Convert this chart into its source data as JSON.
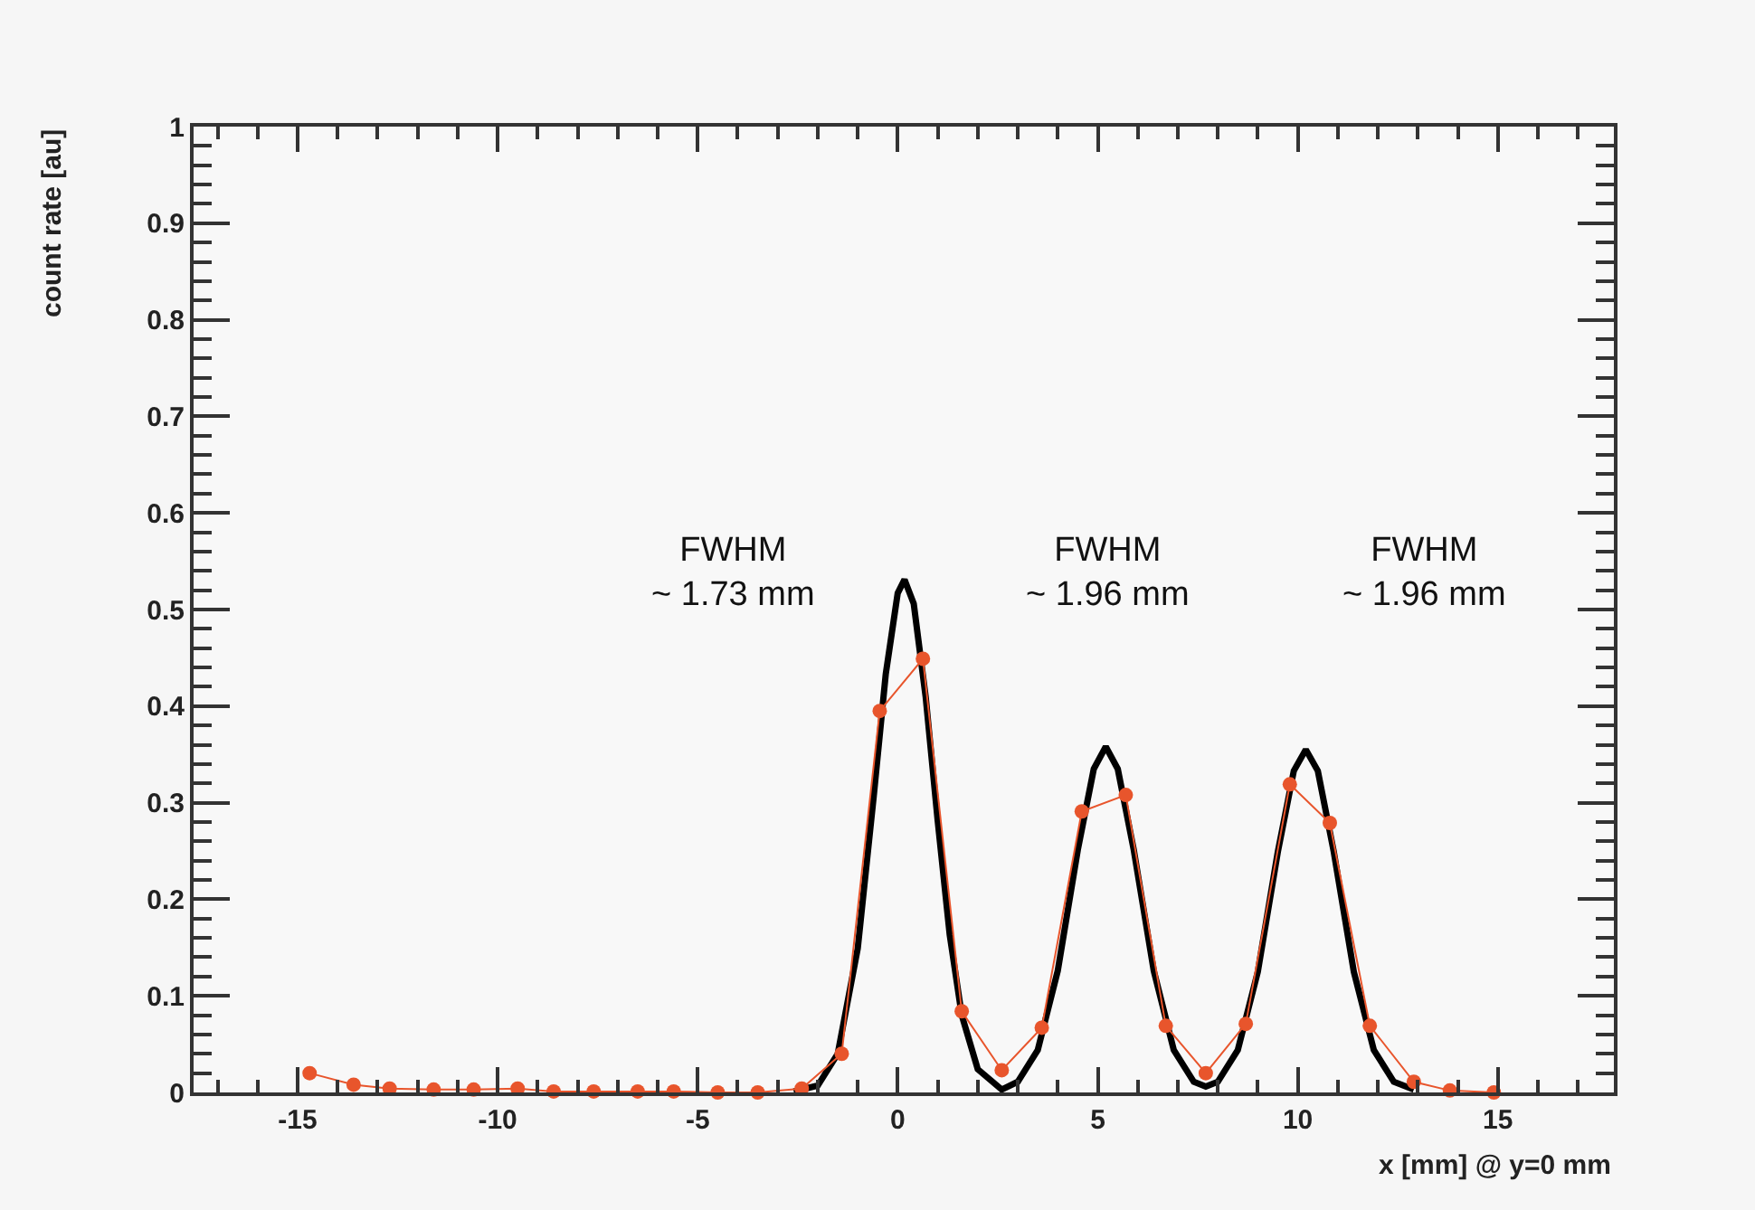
{
  "chart_data": {
    "type": "line",
    "xlabel": "x [mm] @ y=0 mm",
    "ylabel": "count rate [au]",
    "xlim": [
      -17.6,
      17.9
    ],
    "xticks": [
      -15,
      -10,
      -5,
      0,
      5,
      10,
      15
    ],
    "ylim": [
      0,
      1
    ],
    "yticks": [
      0,
      0.1,
      0.2,
      0.3,
      0.4,
      0.5,
      0.6,
      0.7,
      0.8,
      0.9,
      1
    ],
    "grid": false,
    "series": [
      {
        "color": "#000000",
        "marker": "none",
        "x": [
          -2.6,
          -2.0,
          -1.5,
          -1.0,
          -0.6,
          -0.3,
          0.0,
          0.17,
          0.4,
          0.7,
          1.0,
          1.3,
          1.6,
          2.0,
          2.6,
          3.0,
          3.5,
          4.0,
          4.5,
          4.9,
          5.2,
          5.5,
          5.9,
          6.4,
          6.9,
          7.4,
          7.7,
          8.0,
          8.5,
          9.0,
          9.5,
          9.9,
          10.2,
          10.5,
          10.9,
          11.4,
          11.9,
          12.4,
          12.9
        ],
        "values": [
          0.001,
          0.007,
          0.04,
          0.149,
          0.307,
          0.433,
          0.517,
          0.531,
          0.506,
          0.409,
          0.281,
          0.163,
          0.08,
          0.024,
          0.003,
          0.011,
          0.044,
          0.126,
          0.251,
          0.335,
          0.358,
          0.335,
          0.251,
          0.126,
          0.044,
          0.011,
          0.006,
          0.011,
          0.044,
          0.125,
          0.249,
          0.333,
          0.355,
          0.333,
          0.249,
          0.125,
          0.044,
          0.011,
          0.003
        ]
      },
      {
        "color": "#e8552c",
        "marker": "circle",
        "x": [
          -14.7,
          -13.6,
          -12.7,
          -11.6,
          -10.6,
          -9.5,
          -8.6,
          -7.6,
          -6.5,
          -5.6,
          -4.5,
          -3.5,
          -2.4,
          -1.4,
          -0.45,
          0.63,
          1.6,
          2.6,
          3.6,
          4.6,
          5.7,
          6.7,
          7.7,
          8.7,
          9.8,
          10.8,
          11.8,
          12.9,
          13.8,
          14.9
        ],
        "values": [
          0.02,
          0.008,
          0.004,
          0.003,
          0.003,
          0.004,
          0.001,
          0.001,
          0.001,
          0.001,
          0.0,
          0.0,
          0.004,
          0.04,
          0.395,
          0.449,
          0.084,
          0.023,
          0.067,
          0.291,
          0.308,
          0.069,
          0.02,
          0.071,
          0.319,
          0.279,
          0.069,
          0.011,
          0.002,
          0.0
        ]
      }
    ],
    "annotations": [
      "FWHM\n~ 1.73 mm",
      "FWHM\n~ 1.96 mm",
      "FWHM\n~ 1.96 mm"
    ]
  }
}
